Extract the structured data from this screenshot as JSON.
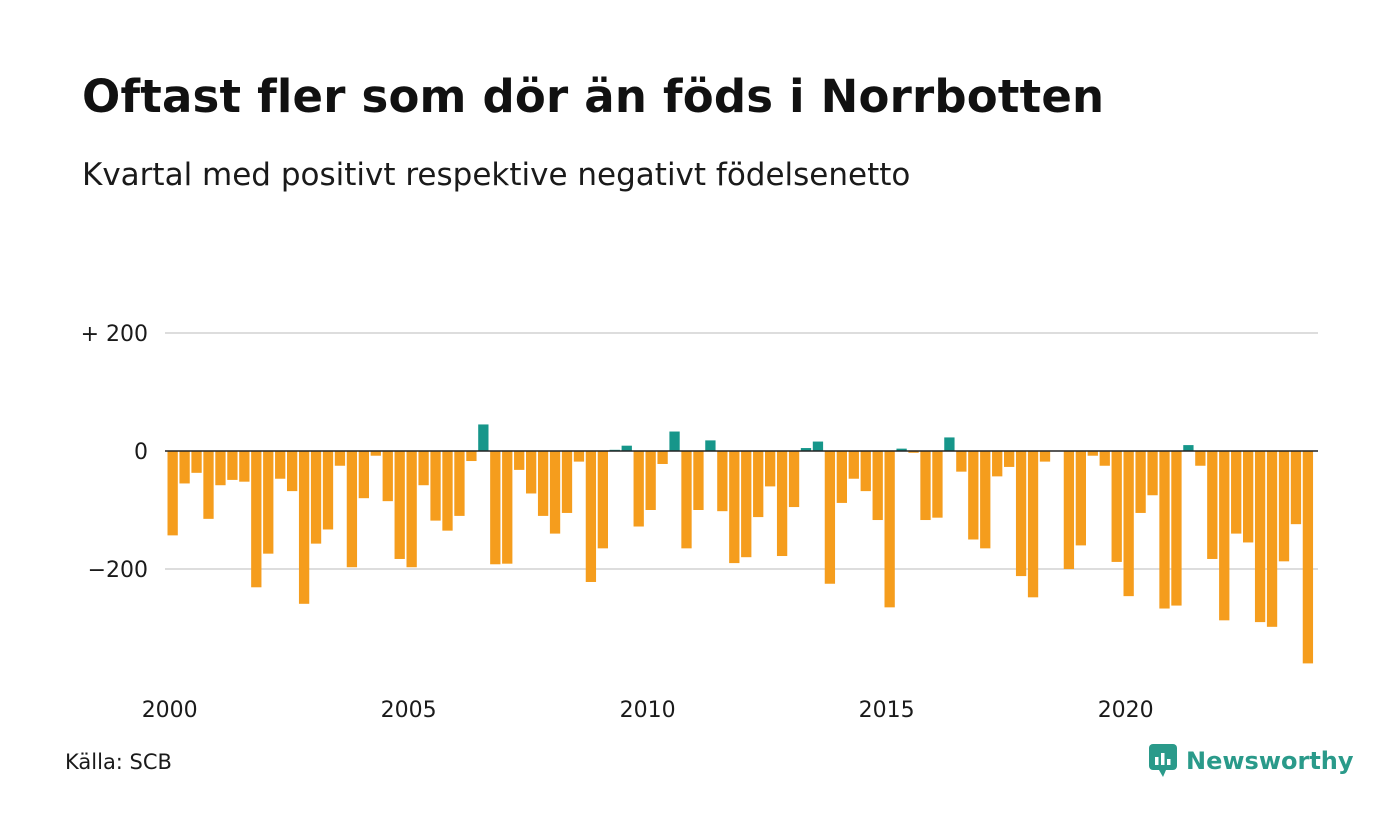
{
  "header": {
    "title": "Oftast fler som dör än föds i Norrbotten",
    "subtitle": "Kvartal med positivt respektive negativt födelsenetto"
  },
  "footer": {
    "source": "Källa: SCB",
    "brand": "Newsworthy",
    "brand_icon": "chart-bubble-icon"
  },
  "colors": {
    "positive": "#16968a",
    "negative": "#f59d1d",
    "grid": "#dddddd",
    "zero_line": "#222222",
    "brand": "#2a9a8a"
  },
  "chart_data": {
    "type": "bar",
    "title": "Oftast fler som dör än föds i Norrbotten",
    "subtitle": "Kvartal med positivt respektive negativt födelsenetto",
    "xlabel": "",
    "ylabel": "",
    "ylim": [
      -370,
      200
    ],
    "y_ticks": [
      200,
      0,
      -200
    ],
    "y_tick_labels": [
      "+ 200",
      "0",
      "−200"
    ],
    "x_ticks": [
      2000,
      2005,
      2010,
      2015,
      2020
    ],
    "x_tick_labels": [
      "2000",
      "2005",
      "2010",
      "2015",
      "2020"
    ],
    "grid": true,
    "legend": "none",
    "start_year": 2000,
    "periods_per_year": 4,
    "values": [
      -143,
      -55,
      -37,
      -115,
      -58,
      -49,
      -52,
      -231,
      -174,
      -47,
      -68,
      -259,
      -157,
      -133,
      -25,
      -197,
      -80,
      -8,
      -85,
      -183,
      -197,
      -58,
      -118,
      -135,
      -110,
      -17,
      45,
      -192,
      -191,
      -32,
      -72,
      -110,
      -140,
      -105,
      -18,
      -222,
      -165,
      2,
      9,
      -128,
      -100,
      -22,
      33,
      -165,
      -100,
      18,
      -102,
      -190,
      -180,
      -112,
      -60,
      -178,
      -95,
      5,
      16,
      -225,
      -88,
      -47,
      -68,
      -117,
      -265,
      4,
      -3,
      -117,
      -113,
      23,
      -35,
      -150,
      -165,
      -43,
      -27,
      -212,
      -248,
      -18,
      0,
      -200,
      -160,
      -8,
      -25,
      -188,
      -246,
      -105,
      -75,
      -267,
      -262,
      10,
      -25,
      -183,
      -287,
      -140,
      -155,
      -290,
      -298,
      -187,
      -124,
      -360
    ]
  }
}
